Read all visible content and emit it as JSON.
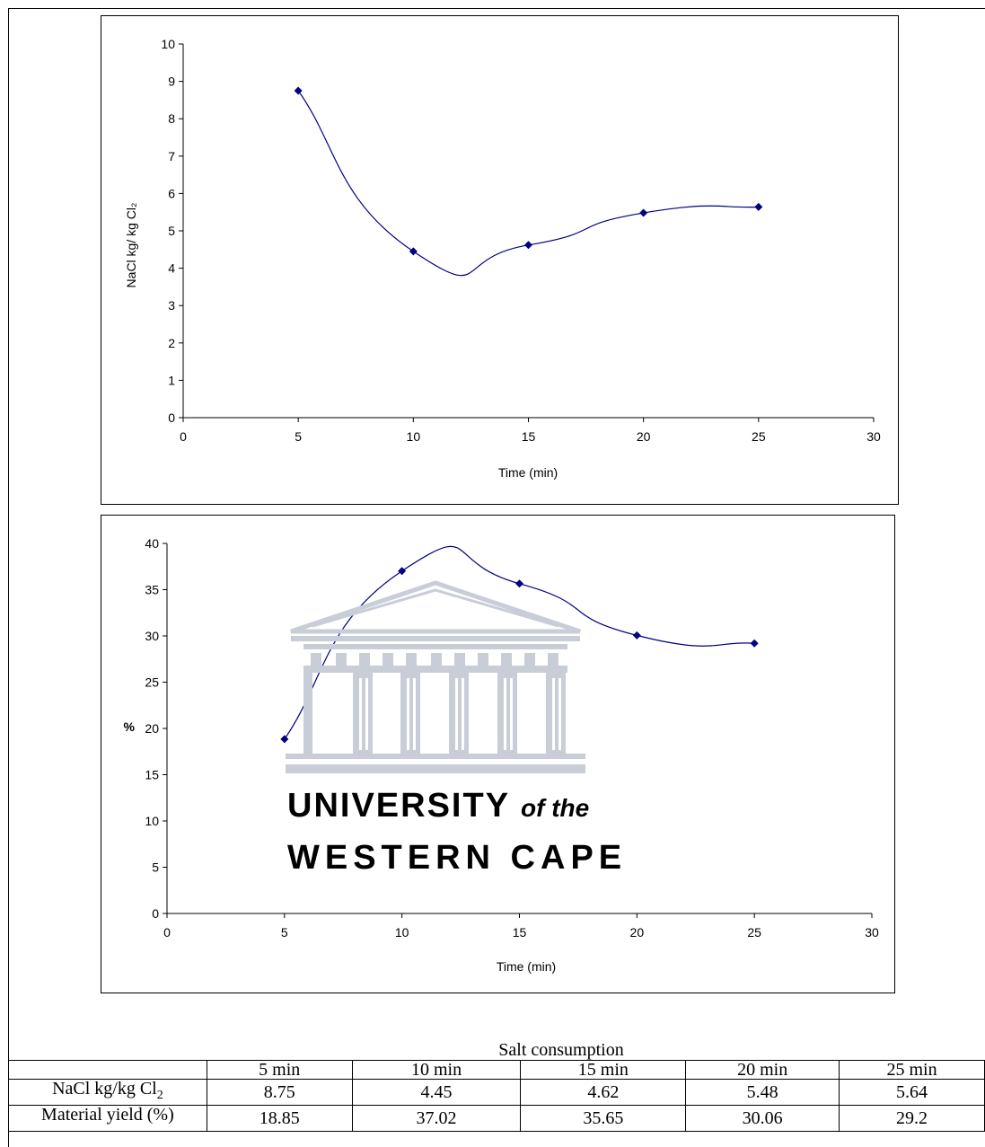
{
  "chart_data": [
    {
      "type": "line",
      "smooth": true,
      "title": "",
      "xlabel": "Time (min)",
      "ylabel": "NaCl kg/ kg Cl₂",
      "xlim": [
        0,
        30
      ],
      "ylim": [
        0,
        10
      ],
      "xticks": [
        "0",
        "5",
        "10",
        "15",
        "20",
        "25",
        "30"
      ],
      "yticks": [
        "0",
        "1",
        "2",
        "3",
        "4",
        "5",
        "6",
        "7",
        "8",
        "9",
        "10"
      ],
      "grid": false,
      "marker": "diamond",
      "color": "#000080",
      "series": [
        {
          "x": [
            5,
            10,
            15,
            20,
            25
          ],
          "y": [
            8.75,
            4.45,
            4.62,
            5.48,
            5.64
          ]
        }
      ]
    },
    {
      "type": "line",
      "smooth": true,
      "title": "",
      "xlabel": "Time (min)",
      "ylabel": "%",
      "xlim": [
        0,
        30
      ],
      "ylim": [
        0,
        40
      ],
      "xticks": [
        "0",
        "5",
        "10",
        "15",
        "20",
        "25",
        "30"
      ],
      "yticks": [
        "0",
        "5",
        "10",
        "15",
        "20",
        "25",
        "30",
        "35",
        "40"
      ],
      "grid": false,
      "marker": "diamond",
      "color": "#000080",
      "series": [
        {
          "x": [
            5,
            10,
            15,
            20,
            25
          ],
          "y": [
            18.85,
            37.02,
            35.65,
            30.06,
            29.2
          ]
        }
      ]
    }
  ],
  "watermark": {
    "line1": "UNIVERSITY",
    "line1_suffix": "of the",
    "line2": "WESTERN CAPE",
    "color": "#c9cdd8"
  },
  "table": {
    "caption": "Salt consumption",
    "headers": [
      "",
      "5 min",
      "10 min",
      "15 min",
      "20 min",
      "25 min"
    ],
    "rows": [
      {
        "label_main": "NaCl kg/kg Cl",
        "label_sub": "2",
        "values": [
          "8.75",
          "4.45",
          "4.62",
          "5.48",
          "5.64"
        ]
      },
      {
        "label_main": "Material yield (%)",
        "label_sub": "",
        "values": [
          "18.85",
          "37.02",
          "35.65",
          "30.06",
          "29.2"
        ]
      }
    ]
  }
}
